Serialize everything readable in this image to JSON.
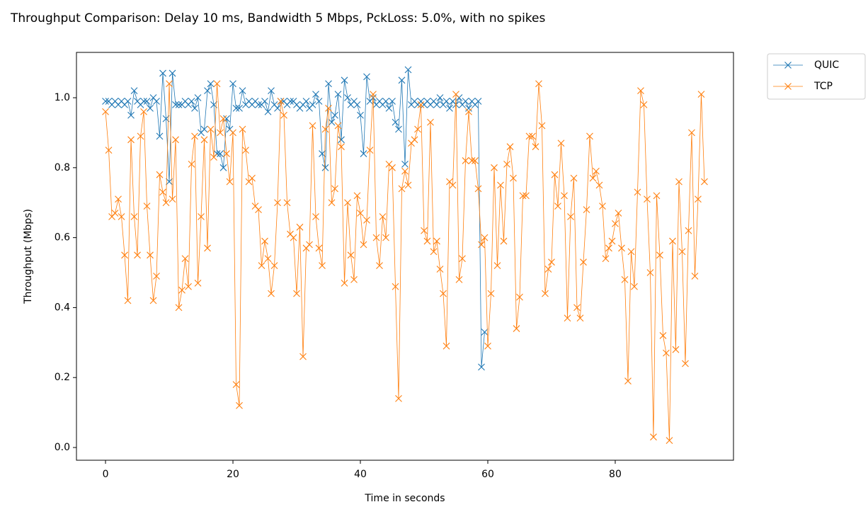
{
  "chart_data": {
    "type": "line",
    "title": "Throughput Comparison: Delay 10 ms, Bandwidth 5 Mbps, PckLoss: 5.0%, with no spikes",
    "x_label": "Time in seconds",
    "y_label": "Throughput (Mbps)",
    "x": [
      0,
      0.5,
      1,
      1.5,
      2,
      2.5,
      3,
      3.5,
      4,
      4.5,
      5,
      5.5,
      6,
      6.5,
      7,
      7.5,
      8,
      8.5,
      9,
      9.5,
      10,
      10.5,
      11,
      11.5,
      12,
      12.5,
      13,
      13.5,
      14,
      14.5,
      15,
      15.5,
      16,
      16.5,
      17,
      17.5,
      18,
      18.5,
      19,
      19.5,
      20,
      20.5,
      21,
      21.5,
      22,
      22.5,
      23,
      23.5,
      24,
      24.5,
      25,
      25.5,
      26,
      26.5,
      27,
      27.5,
      28,
      28.5,
      29,
      29.5,
      30,
      30.5,
      31,
      31.5,
      32,
      32.5,
      33,
      33.5,
      34,
      34.5,
      35,
      35.5,
      36,
      36.5,
      37,
      37.5,
      38,
      38.5,
      39,
      39.5,
      40,
      40.5,
      41,
      41.5,
      42,
      42.5,
      43,
      43.5,
      44,
      44.5,
      45,
      45.5,
      46,
      46.5,
      47,
      47.5,
      48,
      48.5,
      49,
      49.5,
      50,
      50.5,
      51,
      51.5,
      52,
      52.5,
      53,
      53.5,
      54,
      54.5,
      55,
      55.5,
      56,
      56.5,
      57,
      57.5,
      58,
      58.5,
      59,
      59.5,
      60,
      60.5,
      61,
      61.5,
      62,
      62.5,
      63,
      63.5,
      64,
      64.5,
      65,
      65.5,
      66,
      66.5,
      67,
      67.5,
      68,
      68.5,
      69,
      69.5,
      70,
      70.5,
      71,
      71.5,
      72,
      72.5,
      73,
      73.5,
      74,
      74.5,
      75,
      75.5,
      76,
      76.5,
      77,
      77.5,
      78,
      78.5,
      79,
      79.5,
      80,
      80.5,
      81,
      81.5,
      82,
      82.5,
      83,
      83.5,
      84,
      84.5,
      85,
      85.5,
      86,
      86.5,
      87,
      87.5,
      88,
      88.5,
      89,
      89.5,
      90,
      90.5,
      91,
      91.5,
      92,
      92.5,
      93,
      93.5,
      94
    ],
    "series": [
      {
        "name": "QUIC",
        "color": "#1f77b4",
        "values": [
          0.99,
          0.99,
          0.98,
          0.99,
          0.98,
          0.99,
          0.98,
          0.99,
          0.95,
          1.02,
          0.99,
          0.98,
          0.99,
          0.99,
          0.97,
          1.0,
          0.99,
          0.89,
          1.07,
          0.94,
          0.76,
          1.07,
          0.98,
          0.98,
          0.98,
          0.99,
          0.98,
          0.99,
          0.97,
          1.0,
          0.9,
          0.91,
          1.02,
          1.04,
          0.98,
          0.84,
          0.84,
          0.8,
          0.94,
          0.91,
          1.04,
          0.97,
          0.97,
          1.02,
          0.98,
          0.99,
          0.98,
          0.99,
          0.98,
          0.98,
          0.99,
          0.96,
          1.02,
          0.98,
          0.97,
          0.99,
          0.99,
          0.98,
          0.99,
          0.99,
          0.98,
          0.97,
          0.98,
          0.99,
          0.97,
          0.98,
          1.01,
          0.99,
          0.84,
          0.8,
          1.04,
          0.93,
          0.95,
          1.01,
          0.88,
          1.05,
          1.0,
          0.98,
          0.99,
          0.98,
          0.95,
          0.84,
          1.06,
          0.99,
          1.0,
          0.98,
          0.99,
          0.98,
          0.99,
          0.97,
          0.99,
          0.93,
          0.91,
          1.05,
          0.81,
          1.08,
          0.98,
          0.99,
          0.98,
          0.99,
          0.98,
          0.99,
          0.98,
          0.99,
          0.98,
          1.0,
          0.98,
          0.99,
          0.97,
          0.99,
          0.98,
          1.0,
          0.98,
          0.99,
          0.97,
          0.99,
          0.98,
          0.99,
          0.23,
          0.33,
          null,
          null,
          null,
          null,
          null,
          null,
          null,
          null,
          null,
          null,
          null,
          null,
          null,
          null,
          null,
          null,
          null,
          null,
          null,
          null,
          null,
          null,
          null,
          null,
          null,
          null,
          null,
          null,
          null,
          null,
          null,
          null,
          null,
          null,
          null,
          null,
          null,
          null,
          null,
          null,
          null,
          null,
          null,
          null,
          null,
          null,
          null,
          null,
          null,
          null,
          null,
          null,
          null,
          null,
          null,
          null,
          null,
          null,
          null,
          null,
          null,
          null,
          null,
          null,
          null,
          null,
          null,
          null,
          null
        ]
      },
      {
        "name": "TCP",
        "color": "#ff7f0e",
        "values": [
          0.96,
          0.85,
          0.66,
          0.67,
          0.71,
          0.66,
          0.55,
          0.42,
          0.88,
          0.66,
          0.55,
          0.89,
          0.96,
          0.69,
          0.55,
          0.42,
          0.49,
          0.78,
          0.73,
          0.7,
          1.04,
          0.71,
          0.88,
          0.4,
          0.45,
          0.54,
          0.46,
          0.81,
          0.89,
          0.47,
          0.66,
          0.88,
          0.57,
          0.91,
          0.83,
          1.04,
          0.9,
          0.94,
          0.84,
          0.76,
          0.9,
          0.18,
          0.12,
          0.91,
          0.85,
          0.76,
          0.77,
          0.69,
          0.68,
          0.52,
          0.59,
          0.54,
          0.44,
          0.52,
          0.7,
          0.99,
          0.95,
          0.7,
          0.61,
          0.6,
          0.44,
          0.63,
          0.26,
          0.57,
          0.58,
          0.92,
          0.66,
          0.57,
          0.52,
          0.91,
          0.97,
          0.7,
          0.74,
          0.92,
          0.86,
          0.47,
          0.7,
          0.55,
          0.48,
          0.72,
          0.67,
          0.58,
          0.65,
          0.85,
          1.01,
          0.6,
          0.52,
          0.66,
          0.6,
          0.81,
          0.8,
          0.46,
          0.14,
          0.74,
          0.79,
          0.75,
          0.87,
          0.88,
          0.91,
          0.98,
          0.62,
          0.59,
          0.93,
          0.56,
          0.59,
          0.51,
          0.44,
          0.29,
          0.76,
          0.75,
          1.01,
          0.48,
          0.54,
          0.82,
          0.96,
          0.82,
          0.82,
          0.74,
          0.58,
          0.6,
          0.29,
          0.44,
          0.8,
          0.52,
          0.75,
          0.59,
          0.81,
          0.86,
          0.77,
          0.34,
          0.43,
          0.72,
          0.72,
          0.89,
          0.89,
          0.86,
          1.04,
          0.92,
          0.44,
          0.51,
          0.53,
          0.78,
          0.69,
          0.87,
          0.72,
          0.37,
          0.66,
          0.77,
          0.4,
          0.37,
          0.53,
          0.68,
          0.89,
          0.77,
          0.79,
          0.75,
          0.69,
          0.54,
          0.57,
          0.59,
          0.64,
          0.67,
          0.57,
          0.48,
          0.19,
          0.56,
          0.46,
          0.73,
          1.02,
          0.98,
          0.71,
          0.5,
          0.03,
          0.72,
          0.55,
          0.32,
          0.27,
          0.02,
          0.59,
          0.28,
          0.76,
          0.56,
          0.24,
          0.62,
          0.9,
          0.49,
          0.71,
          1.01,
          0.76
        ]
      }
    ],
    "xlim": [
      -4.56,
      98.56
    ],
    "xticks": [
      0,
      20,
      40,
      60,
      80
    ],
    "ylim": [
      -0.0364,
      1.1296
    ],
    "yticks": [
      {
        "value": 0,
        "label": "0.0"
      },
      0.2,
      0.4,
      0.6,
      0.8,
      {
        "value": 1,
        "label": "1.0"
      }
    ],
    "marker": "x",
    "legend": "upper right outside"
  }
}
